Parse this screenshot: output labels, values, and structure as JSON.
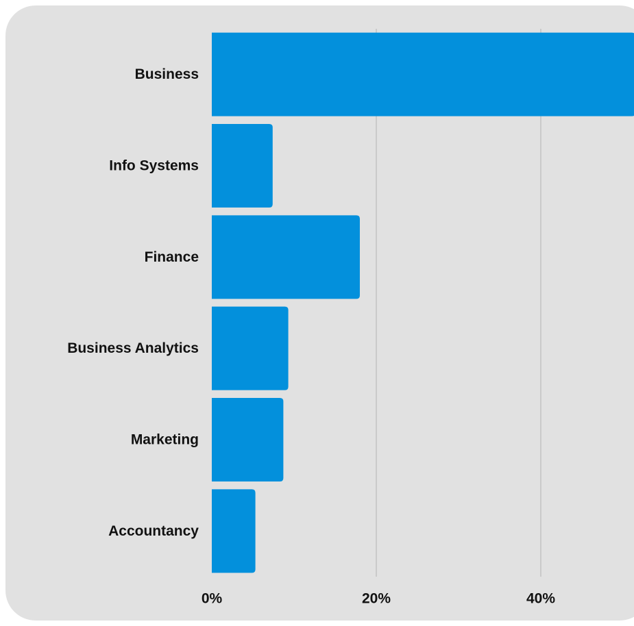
{
  "chart_data": {
    "type": "bar",
    "orientation": "horizontal",
    "categories": [
      "Business",
      "Info Systems",
      "Finance",
      "Business Analytics",
      "Marketing",
      "Accountancy"
    ],
    "values": [
      51.5,
      7.4,
      18.0,
      9.3,
      8.7,
      5.3
    ],
    "x_tick_labels": [
      "0%",
      "20%",
      "40%"
    ],
    "x_ticks": [
      0,
      20,
      40
    ],
    "xlim": [
      0,
      51.4
    ],
    "grid": true,
    "legend": "none",
    "bar_color": "#0390dc",
    "background_color": "#e1e1e1",
    "gridline_color": "#b4b4b4"
  }
}
